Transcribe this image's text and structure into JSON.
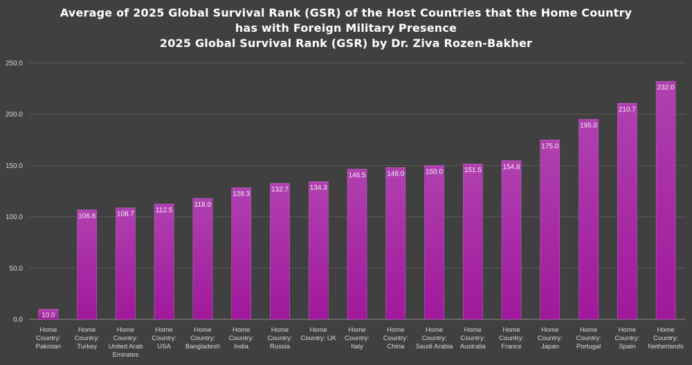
{
  "chart_data": {
    "type": "bar",
    "title_lines": [
      "Average of 2025 Global Survival Rank (GSR) of the Host Countries that the Home Country",
      "has with Foreign Military Presence",
      "2025 Global Survival Rank (GSR) by Dr. Ziva Rozen-Bakher"
    ],
    "xlabel": "",
    "ylabel": "",
    "ylim": [
      0,
      250
    ],
    "yticks": [
      "0.0",
      "50.0",
      "100.0",
      "150.0",
      "200.0",
      "250.0"
    ],
    "grid": true,
    "categories": [
      [
        "Home",
        "Country:",
        "Pakistan"
      ],
      [
        "Home",
        "Country:",
        "Turkey"
      ],
      [
        "Home",
        "Country:",
        "United Arab",
        "Emirates"
      ],
      [
        "Home",
        "Country:",
        "USA"
      ],
      [
        "Home",
        "Country:",
        "Bangladesh"
      ],
      [
        "Home",
        "Country:",
        "India"
      ],
      [
        "Home",
        "Country:",
        "Russia"
      ],
      [
        "Home",
        "Country: UK"
      ],
      [
        "Home",
        "Country:",
        "Italy"
      ],
      [
        "Home",
        "Country:",
        "China"
      ],
      [
        "Home",
        "Country:",
        "Saudi Arabia"
      ],
      [
        "Home",
        "Country:",
        "Australia"
      ],
      [
        "Home",
        "Country:",
        "France"
      ],
      [
        "Home",
        "Country:",
        "Japan"
      ],
      [
        "Home",
        "Country:",
        "Portugal"
      ],
      [
        "Home",
        "Country:",
        "Spain"
      ],
      [
        "Home",
        "Country:",
        "Netherlands"
      ]
    ],
    "values": [
      10.0,
      106.8,
      108.7,
      112.5,
      118.0,
      128.3,
      132.7,
      134.3,
      146.5,
      148.0,
      150.0,
      151.5,
      154.8,
      175.0,
      195.0,
      210.7,
      232.0
    ],
    "data_labels": [
      "10.0",
      "106.8",
      "108.7",
      "112.5",
      "118.0",
      "128.3",
      "132.7",
      "134.3",
      "146.5",
      "148.0",
      "150.0",
      "151.5",
      "154.8",
      "175.0",
      "195.0",
      "210.7",
      "232.0"
    ],
    "colors": {
      "bar_top": "#b040b0",
      "bar_bottom": "#a0189c",
      "bar_edge": "#c060c0",
      "grid": "#5a5a5a",
      "axis": "#8c8c8c",
      "background": "#404040"
    }
  }
}
